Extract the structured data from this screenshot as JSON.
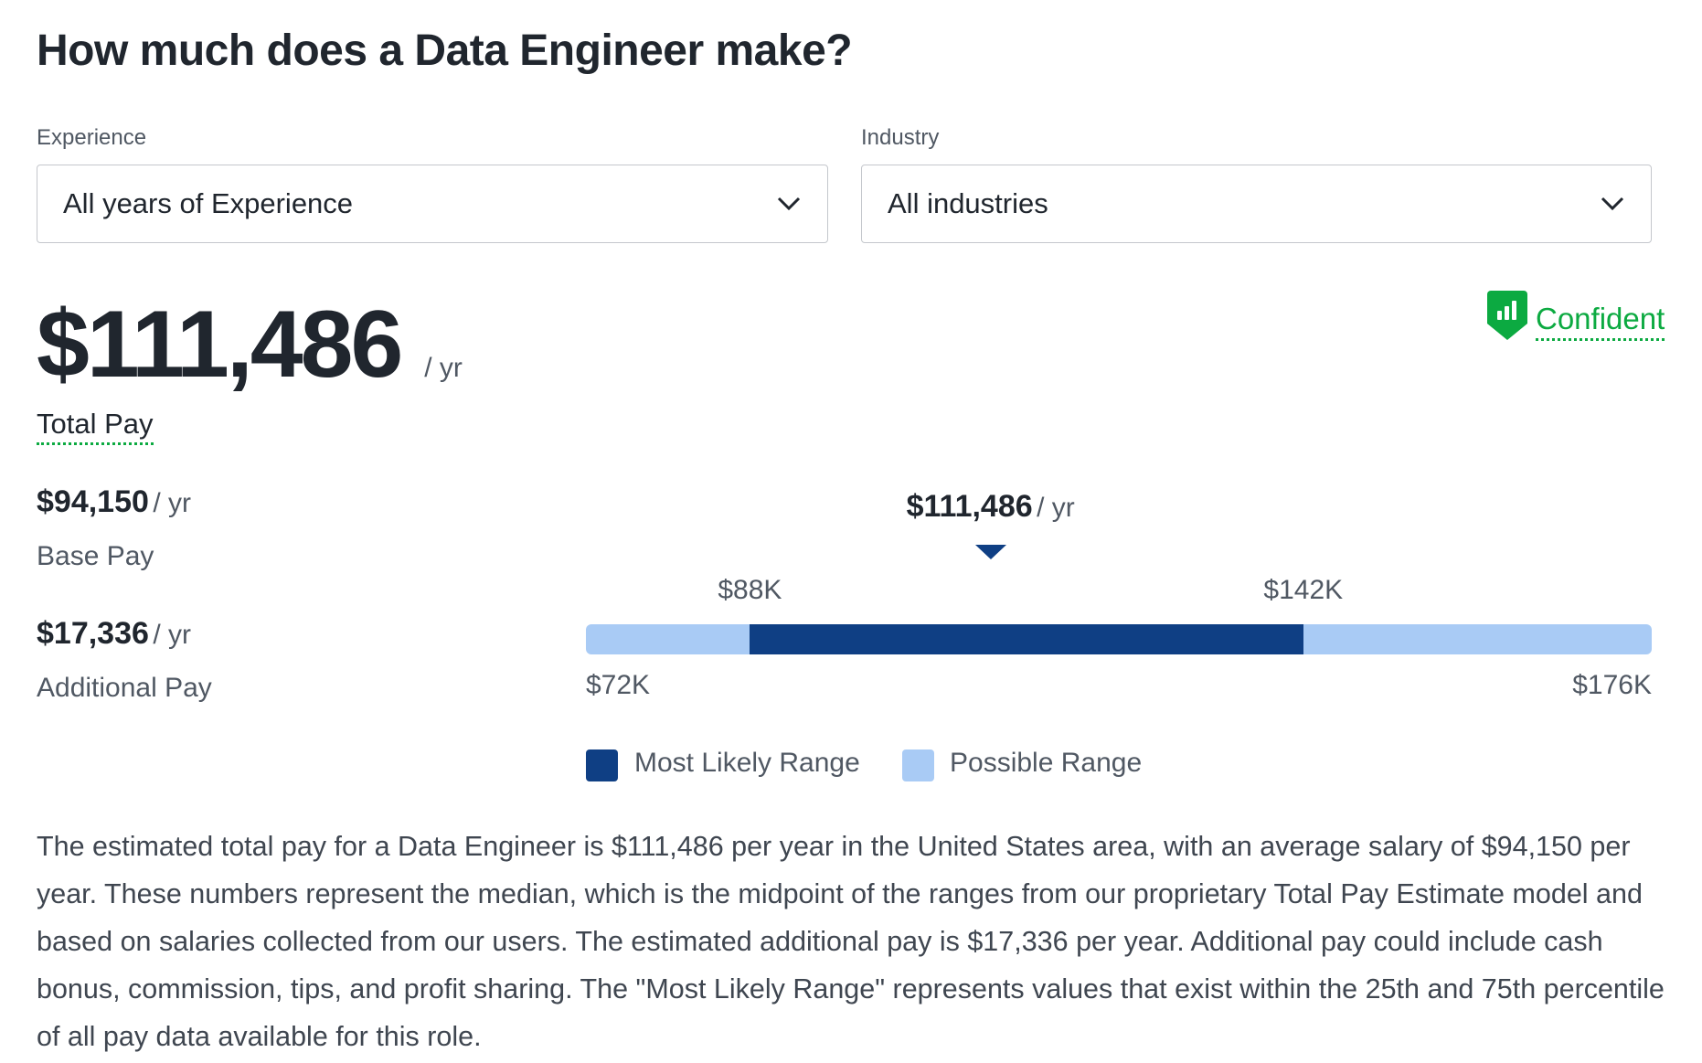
{
  "title": "How much does a Data Engineer make?",
  "filters": {
    "experience": {
      "label": "Experience",
      "value": "All years of Experience"
    },
    "industry": {
      "label": "Industry",
      "value": "All industries"
    }
  },
  "confidence": {
    "label": "Confident",
    "icon": "shield-bar-chart-icon",
    "color": "#0caa41"
  },
  "total": {
    "amount": "$111,486",
    "unit": "/ yr",
    "label": "Total Pay"
  },
  "base": {
    "amount": "$94,150",
    "unit": "/ yr",
    "label": "Base Pay"
  },
  "additional": {
    "amount": "$17,336",
    "unit": "/ yr",
    "label": "Additional Pay"
  },
  "chart_data": {
    "type": "range-bar",
    "median": {
      "value": 111486,
      "label": "$111,486",
      "unit": "/ yr"
    },
    "possible_range": {
      "min": 72,
      "max": 176,
      "min_label": "$72K",
      "max_label": "$176K",
      "color": "#a9cbf5"
    },
    "likely_range": {
      "min": 88,
      "max": 142,
      "min_label": "$88K",
      "max_label": "$142K",
      "color": "#0f3f84"
    },
    "legend": [
      "Most Likely Range",
      "Possible Range"
    ]
  },
  "description": "The estimated total pay for a Data Engineer is $111,486 per year in the United States area, with an average salary of $94,150 per year. These numbers represent the median, which is the midpoint of the ranges from our proprietary Total Pay Estimate model and based on salaries collected from our users. The estimated additional pay is $17,336 per year. Additional pay could include cash bonus, commission, tips, and profit sharing. The \"Most Likely Range\" represents values that exist within the 25th and 75th percentile of all pay data available for this role."
}
